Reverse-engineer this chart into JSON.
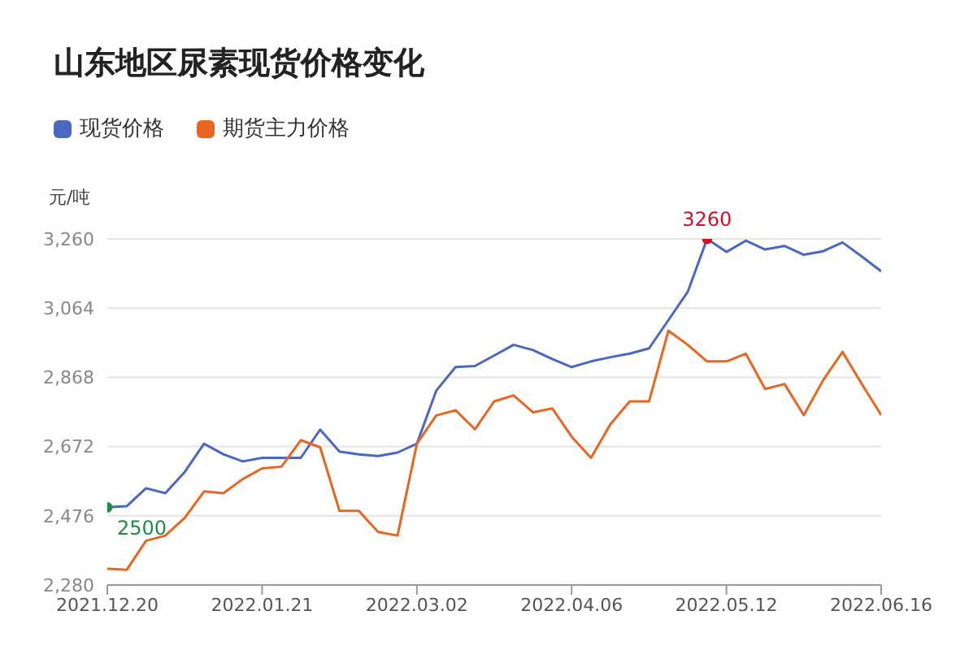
{
  "chart_data": {
    "type": "line",
    "title": "山东地区尿素现货价格变化",
    "ylabel": "元/吨",
    "categories": [
      "2021.12.20",
      null,
      null,
      null,
      null,
      null,
      null,
      null,
      "2022.01.21",
      null,
      null,
      null,
      null,
      null,
      null,
      null,
      "2022.03.02",
      null,
      null,
      null,
      null,
      null,
      null,
      null,
      "2022.04.06",
      null,
      null,
      null,
      null,
      null,
      null,
      null,
      "2022.05.12",
      null,
      null,
      null,
      null,
      null,
      null,
      null,
      "2022.06.16"
    ],
    "series": [
      {
        "name": "现货价格",
        "color": "#4a68c2",
        "values": [
          2500,
          2503,
          2554,
          2540,
          2600,
          2680,
          2650,
          2630,
          2640,
          2640,
          2640,
          2720,
          2658,
          2650,
          2645,
          2655,
          2680,
          2830,
          2897,
          2900,
          2930,
          2960,
          2945,
          2920,
          2897,
          2913,
          2925,
          2935,
          2950,
          3030,
          3110,
          3260,
          3223,
          3255,
          3230,
          3240,
          3215,
          3225,
          3250,
          3210,
          3168
        ],
        "value_labels": [
          "2500",
          null,
          null,
          null,
          null,
          null,
          null,
          null,
          null,
          null,
          null,
          null,
          null,
          null,
          null,
          null,
          null,
          null,
          null,
          null,
          null,
          null,
          null,
          null,
          null,
          null,
          null,
          null,
          null,
          null,
          null,
          "3260",
          null,
          null,
          null,
          null,
          null,
          null,
          null,
          null,
          null
        ]
      },
      {
        "name": "期货主力价格",
        "color": "#e8661f",
        "values": [
          2326,
          2323,
          2405,
          2420,
          2470,
          2545,
          2540,
          2580,
          2610,
          2615,
          2690,
          2670,
          2490,
          2490,
          2430,
          2420,
          2680,
          2760,
          2775,
          2721,
          2800,
          2817,
          2769,
          2780,
          2700,
          2640,
          2735,
          2800,
          2800,
          3000,
          2960,
          2913,
          2913,
          2935,
          2835,
          2849,
          2761,
          2860,
          2940,
          2849,
          2761
        ]
      }
    ],
    "ylim": [
      2280,
      3260
    ],
    "yticks": [
      {
        "value": 2280,
        "label": "2,280"
      },
      {
        "value": 2476,
        "label": "2,476"
      },
      {
        "value": 2672,
        "label": "2,672"
      },
      {
        "value": 2868,
        "label": "2,868"
      },
      {
        "value": 3064,
        "label": "3,064"
      },
      {
        "value": 3260,
        "label": "3,260"
      }
    ],
    "grid": "y",
    "legend": "top left",
    "marker": "none",
    "line_style": "solid"
  }
}
